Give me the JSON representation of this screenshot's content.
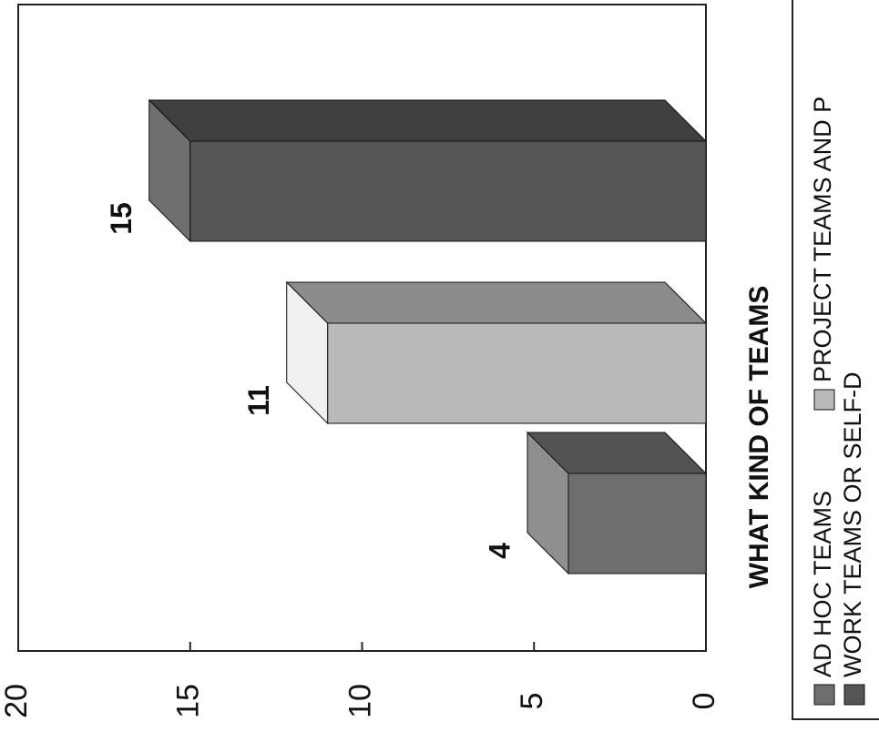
{
  "chart_data": {
    "type": "bar3d",
    "title": "WHAT KIND OF TEAMS",
    "series": [
      {
        "name": "AD HOC TEAMS",
        "color": "#6e6e6e",
        "values": [
          4
        ]
      },
      {
        "name": "PROJECT TEAMS AND P",
        "color": "#b9b9b9",
        "values": [
          11
        ]
      },
      {
        "name": "WORK TEAMS OR SELF-D",
        "color": "#555555",
        "values": [
          15
        ]
      }
    ],
    "ylim": [
      0,
      20
    ],
    "yticks": [
      0,
      5,
      10,
      15,
      20
    ]
  }
}
